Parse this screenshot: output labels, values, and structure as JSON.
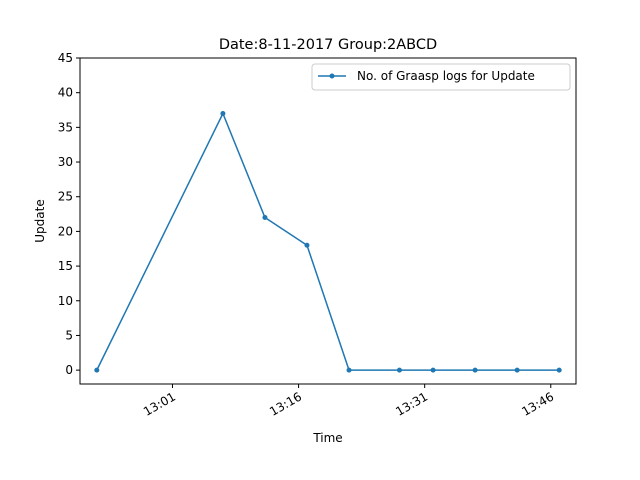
{
  "chart_data": {
    "type": "line",
    "title": "Date:8-11-2017  Group:2ABCD",
    "xlabel": "Time",
    "ylabel": "Update",
    "x": [
      "12:52",
      "13:07",
      "13:12",
      "13:17",
      "13:22",
      "13:28",
      "13:32",
      "13:37",
      "13:42",
      "13:47"
    ],
    "x_ticks": [
      "13:01",
      "13:16",
      "13:31",
      "13:46"
    ],
    "y_ticks": [
      0,
      5,
      10,
      15,
      20,
      25,
      30,
      35,
      40,
      45
    ],
    "ylim": [
      -2,
      45
    ],
    "xlim": [
      "12:50",
      "13:49"
    ],
    "grid": false,
    "legend_position": "top-right",
    "colors": {
      "series": "#1f77b4"
    },
    "series": [
      {
        "name": "No. of Graasp logs for Update",
        "values": [
          0,
          37,
          22,
          18,
          0,
          0,
          0,
          0,
          0,
          0
        ]
      }
    ]
  }
}
